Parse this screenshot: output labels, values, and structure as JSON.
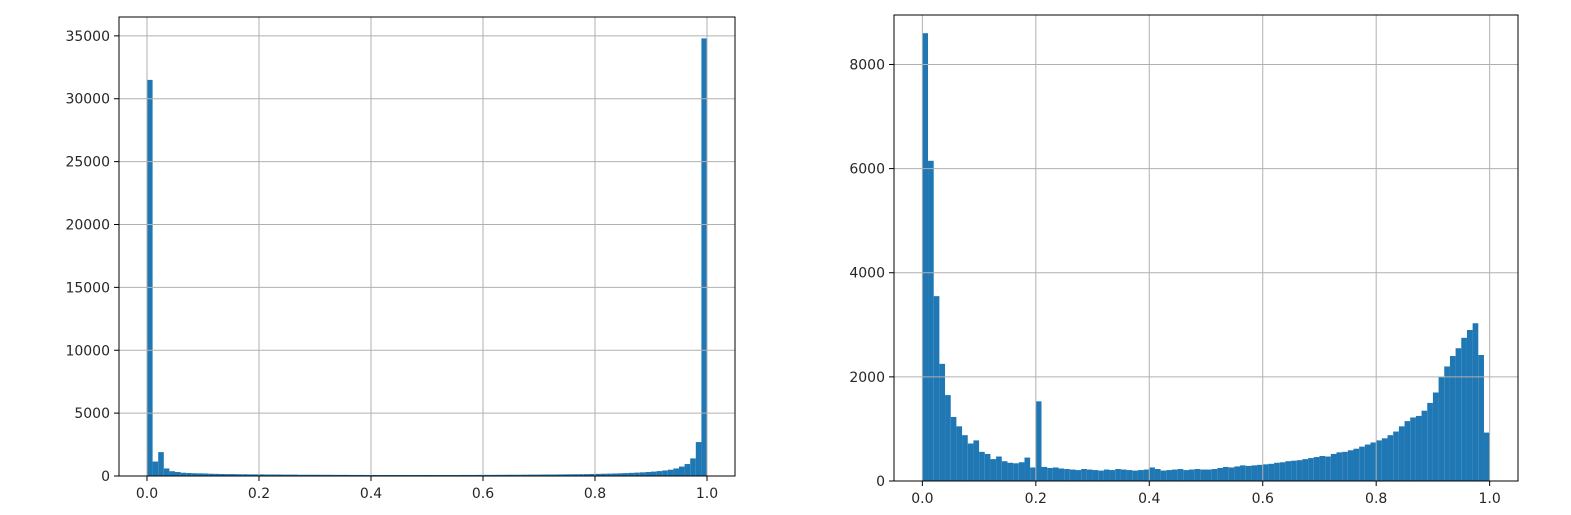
{
  "chart_data": [
    {
      "type": "bar",
      "title": "",
      "xlabel": "",
      "ylabel": "",
      "grid": true,
      "xlim": [
        -0.05,
        1.05
      ],
      "ylim": [
        0,
        36500
      ],
      "bin_width": 0.01,
      "xticks": [
        0.0,
        0.2,
        0.4,
        0.6,
        0.8,
        1.0
      ],
      "xtick_labels": [
        "0.0",
        "0.2",
        "0.4",
        "0.6",
        "0.8",
        "1.0"
      ],
      "yticks": [
        0,
        5000,
        10000,
        15000,
        20000,
        25000,
        30000,
        35000
      ],
      "ytick_labels": [
        "0",
        "5000",
        "10000",
        "15000",
        "20000",
        "25000",
        "30000",
        "35000"
      ],
      "color": "#1f77b4",
      "values": [
        31500,
        1150,
        1900,
        600,
        380,
        320,
        260,
        240,
        220,
        210,
        200,
        180,
        170,
        160,
        150,
        150,
        140,
        140,
        130,
        130,
        130,
        120,
        120,
        120,
        110,
        110,
        110,
        100,
        100,
        100,
        100,
        95,
        95,
        90,
        90,
        90,
        85,
        85,
        85,
        80,
        80,
        80,
        80,
        80,
        80,
        80,
        80,
        80,
        80,
        80,
        80,
        80,
        80,
        80,
        80,
        80,
        85,
        85,
        85,
        90,
        90,
        90,
        95,
        95,
        100,
        100,
        100,
        105,
        110,
        110,
        115,
        120,
        120,
        125,
        130,
        135,
        140,
        145,
        150,
        160,
        170,
        180,
        190,
        200,
        215,
        230,
        250,
        270,
        290,
        320,
        350,
        390,
        440,
        500,
        600,
        750,
        950,
        1400,
        2700,
        34800
      ]
    },
    {
      "type": "bar",
      "title": "",
      "xlabel": "",
      "ylabel": "",
      "grid": true,
      "xlim": [
        -0.05,
        1.05
      ],
      "ylim": [
        0,
        8950
      ],
      "bin_width": 0.01,
      "xticks": [
        0.0,
        0.2,
        0.4,
        0.6,
        0.8,
        1.0
      ],
      "xtick_labels": [
        "0.0",
        "0.2",
        "0.4",
        "0.6",
        "0.8",
        "1.0"
      ],
      "yticks": [
        0,
        2000,
        4000,
        6000,
        8000
      ],
      "ytick_labels": [
        "0",
        "2000",
        "4000",
        "6000",
        "8000"
      ],
      "color": "#1f77b4",
      "values": [
        8600,
        6150,
        3550,
        2250,
        1650,
        1230,
        1050,
        880,
        720,
        780,
        560,
        520,
        420,
        470,
        380,
        350,
        340,
        360,
        450,
        260,
        1530,
        270,
        250,
        260,
        240,
        230,
        220,
        210,
        230,
        220,
        210,
        200,
        220,
        210,
        230,
        220,
        210,
        200,
        210,
        220,
        260,
        230,
        200,
        210,
        220,
        230,
        210,
        220,
        230,
        220,
        220,
        230,
        250,
        270,
        260,
        280,
        300,
        290,
        300,
        310,
        320,
        330,
        350,
        360,
        380,
        390,
        400,
        420,
        440,
        460,
        480,
        470,
        520,
        550,
        560,
        590,
        620,
        660,
        700,
        740,
        780,
        820,
        880,
        950,
        1050,
        1150,
        1220,
        1250,
        1350,
        1500,
        1700,
        2000,
        2200,
        2400,
        2550,
        2750,
        2900,
        3030,
        2420,
        930
      ]
    }
  ]
}
